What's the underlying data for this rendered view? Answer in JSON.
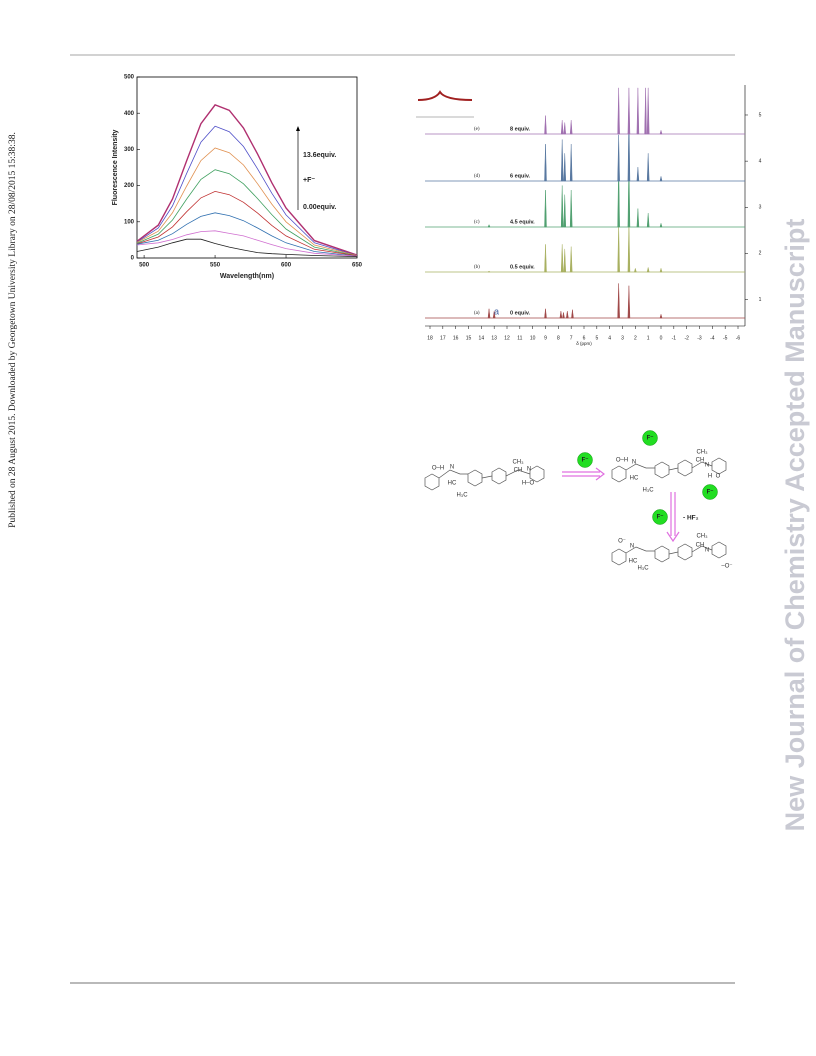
{
  "side_note": "Published on 28 August 2015. Downloaded by Georgetown University Library on 28/08/2015 15:38:38.",
  "watermark": "New Journal of Chemistry Accepted Manuscript",
  "chart_data": [
    {
      "type": "line",
      "xlabel": "Wavelength(nm)",
      "ylabel": "Fluorescence Intensity",
      "xlim": [
        495,
        650
      ],
      "xticks": [
        500,
        550,
        600,
        650
      ],
      "ylim": [
        0,
        500
      ],
      "yticks": [
        0,
        100,
        200,
        300,
        400,
        500
      ],
      "annotations": [
        "13.6equiv.",
        "+F⁻",
        "0.00equiv."
      ],
      "x": [
        495,
        510,
        520,
        530,
        540,
        550,
        560,
        570,
        580,
        590,
        600,
        620,
        650
      ],
      "series": [
        {
          "color": "#b03070",
          "values": [
            46,
            91,
            163,
            269,
            371,
            423,
            408,
            359,
            287,
            208,
            138,
            48,
            8
          ]
        },
        {
          "color": "#5050c8",
          "values": [
            44,
            83,
            144,
            234,
            320,
            364,
            349,
            308,
            246,
            179,
            119,
            42,
            7
          ]
        },
        {
          "color": "#e09050",
          "values": [
            43,
            74,
            125,
            199,
            269,
            304,
            291,
            257,
            205,
            149,
            100,
            36,
            7
          ]
        },
        {
          "color": "#40a060",
          "values": [
            41,
            66,
            105,
            163,
            217,
            244,
            233,
            205,
            164,
            120,
            80,
            30,
            6
          ]
        },
        {
          "color": "#c03030",
          "values": [
            39,
            58,
            86,
            128,
            166,
            184,
            175,
            154,
            124,
            90,
            61,
            24,
            6
          ]
        },
        {
          "color": "#3070b0",
          "values": [
            38,
            49,
            67,
            93,
            115,
            125,
            117,
            103,
            83,
            61,
            42,
            18,
            5
          ]
        },
        {
          "color": "#d070d0",
          "values": [
            36,
            42,
            51,
            64,
            73,
            75,
            68,
            61,
            49,
            37,
            26,
            13,
            5
          ]
        },
        {
          "color": "#202020",
          "values": [
            18,
            30,
            42,
            52,
            52,
            40,
            30,
            22,
            15,
            12,
            10,
            7,
            4
          ]
        }
      ]
    },
    {
      "type": "nmr",
      "xlabel": "δ (ppm)",
      "xlim": [
        18,
        -6
      ],
      "xticks": [
        18,
        17,
        16,
        15,
        14,
        13,
        12,
        11,
        10,
        9,
        8,
        7,
        6,
        5,
        4,
        3,
        2,
        1,
        0,
        -1,
        -2,
        -3,
        -4,
        -5,
        -6
      ],
      "y2lim": [
        0.6,
        5.65
      ],
      "y2ticks": [
        1,
        2,
        3,
        4,
        5
      ],
      "annotation": "a",
      "series": [
        {
          "name": "(a)",
          "label": "0 equiv.",
          "color": "#a04848",
          "ppm": [
            13.4,
            13.0,
            9.0,
            7.8,
            7.6,
            7.3,
            6.9,
            3.3,
            2.5,
            0
          ],
          "values": [
            0.2,
            0.15,
            0.2,
            0.15,
            0.12,
            0.15,
            0.18,
            0.75,
            0.7,
            0.08
          ]
        },
        {
          "name": "(b)",
          "label": "0.5 equiv.",
          "color": "#a8b060",
          "ppm": [
            13.4,
            9.0,
            7.7,
            7.5,
            7.0,
            3.3,
            2.5,
            2.0,
            1.0,
            0
          ],
          "values": [
            0.02,
            0.6,
            0.6,
            0.5,
            0.55,
            1.05,
            1.1,
            0.08,
            0.1,
            0.08
          ]
        },
        {
          "name": "(c)",
          "label": "4.5 equiv.",
          "color": "#50a070",
          "ppm": [
            13.4,
            9.0,
            7.7,
            7.5,
            7.0,
            3.3,
            2.5,
            1.8,
            1.0,
            0
          ],
          "values": [
            0.05,
            0.8,
            0.9,
            0.7,
            0.8,
            1.4,
            1.5,
            0.4,
            0.3,
            0.08
          ]
        },
        {
          "name": "(d)",
          "label": "6 equiv.",
          "color": "#5878a0",
          "ppm": [
            9.0,
            7.7,
            7.5,
            7.0,
            3.3,
            2.5,
            1.8,
            1.0,
            0
          ],
          "values": [
            0.8,
            0.9,
            0.6,
            0.8,
            1.0,
            1.5,
            0.3,
            0.6,
            0.1
          ]
        },
        {
          "name": "(e)",
          "label": "8 equiv.",
          "color": "#a070b0",
          "ppm": [
            9.0,
            7.7,
            7.5,
            7.0,
            3.3,
            2.5,
            1.8,
            1.2,
            1.0,
            0
          ],
          "values": [
            0.4,
            0.3,
            0.25,
            0.3,
            1.0,
            1.0,
            1.0,
            1.0,
            1.0,
            0.08
          ]
        }
      ]
    }
  ],
  "scheme": {
    "fluoride": "F⁻",
    "byproduct": "- HF₂",
    "left": [
      "O–H",
      "N",
      "HC",
      "H₃C",
      "CH₃",
      "CH",
      "N",
      "H–O"
    ],
    "top": [
      "O–H",
      "N",
      "HC",
      "H₃C",
      "CH₃",
      "N",
      "CH",
      "H",
      "O"
    ],
    "bottom": [
      "O⁻",
      "N",
      "HC",
      "H₃C",
      "CH₃",
      "N",
      "CH",
      "–O⁻"
    ]
  }
}
